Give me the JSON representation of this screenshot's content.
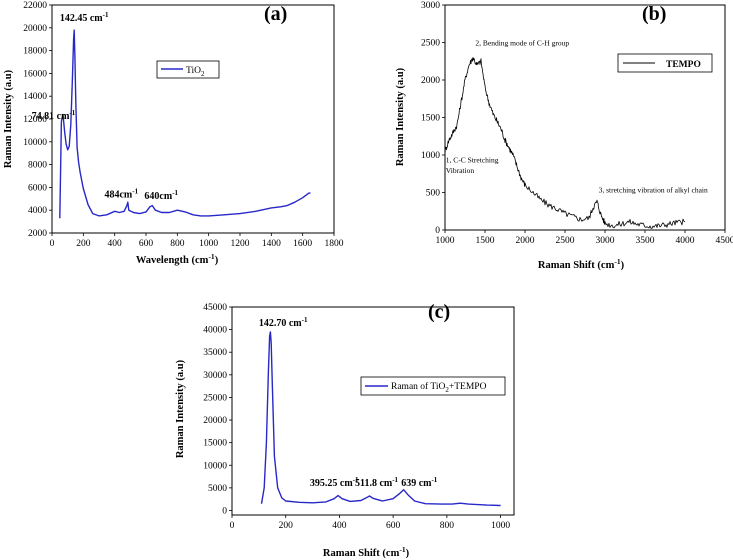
{
  "chart_data": [
    {
      "id": "a",
      "type": "line",
      "panel_label": "(a)",
      "xlabel": "Wavelength (cm",
      "xlabel_sup": "-1",
      "xlabel_tail": ")",
      "ylabel": "Raman Intensity (a.u)",
      "xlim": [
        0,
        1800
      ],
      "ylim": [
        2000,
        22000
      ],
      "xticks": [
        0,
        200,
        400,
        600,
        800,
        1000,
        1200,
        1400,
        1600,
        1800
      ],
      "yticks": [
        2000,
        4000,
        6000,
        8000,
        10000,
        12000,
        14000,
        16000,
        18000,
        20000,
        22000
      ],
      "series": [
        {
          "name": "TiO",
          "name_sub": "2",
          "color": "#2828c8",
          "noise": 0,
          "x": [
            50,
            60,
            70,
            80,
            90,
            100,
            110,
            120,
            130,
            138,
            142,
            146,
            152,
            160,
            170,
            180,
            200,
            230,
            260,
            300,
            350,
            400,
            430,
            460,
            478,
            484,
            490,
            520,
            560,
            600,
            625,
            640,
            660,
            700,
            750,
            800,
            850,
            900,
            950,
            1000,
            1100,
            1200,
            1300,
            1400,
            1460,
            1500,
            1550,
            1600,
            1640,
            1650
          ],
          "y": [
            3300,
            11800,
            12400,
            11000,
            9800,
            9300,
            9600,
            11500,
            15500,
            19000,
            19800,
            17500,
            13500,
            9500,
            8200,
            7300,
            5900,
            4500,
            3700,
            3500,
            3600,
            3900,
            3800,
            3900,
            4400,
            4700,
            4000,
            3800,
            3700,
            3850,
            4300,
            4400,
            4000,
            3800,
            3800,
            4000,
            3850,
            3600,
            3500,
            3500,
            3600,
            3700,
            3900,
            4200,
            4300,
            4400,
            4700,
            5100,
            5500,
            5500
          ]
        }
      ],
      "annotations": [
        {
          "text": "142.45 cm",
          "sup": "-1",
          "x": 50,
          "y": 20600
        },
        {
          "text": "74.81 cm",
          "sup": "-1",
          "x": -130,
          "y": 12000
        },
        {
          "text": "484cm",
          "sup": "-1",
          "x": 335,
          "y": 5100
        },
        {
          "text": "640cm",
          "sup": "-1",
          "x": 590,
          "y": 5000
        }
      ],
      "legend": "top-right"
    },
    {
      "id": "b",
      "type": "line",
      "panel_label": "(b)",
      "xlabel": "Raman Shift (cm",
      "xlabel_sup": "-1",
      "xlabel_tail": ")",
      "ylabel": "Raman Intensity (a.u)",
      "xlim": [
        1000,
        4500
      ],
      "ylim": [
        0,
        3000
      ],
      "xticks": [
        1000,
        1500,
        2000,
        2500,
        3000,
        3500,
        4000,
        4500
      ],
      "yticks": [
        0,
        500,
        1000,
        1500,
        2000,
        2500,
        3000
      ],
      "series": [
        {
          "name": "TEMPO",
          "color": "#000000",
          "noise": 40,
          "x": [
            1000,
            1050,
            1100,
            1150,
            1200,
            1250,
            1300,
            1350,
            1400,
            1450,
            1500,
            1550,
            1600,
            1650,
            1700,
            1750,
            1800,
            1850,
            1900,
            1950,
            2000,
            2100,
            2200,
            2300,
            2400,
            2500,
            2600,
            2700,
            2800,
            2850,
            2900,
            2950,
            3000,
            3100,
            3200,
            3300,
            3400,
            3500,
            3600,
            3700,
            3800,
            3900,
            4000
          ],
          "y": [
            1050,
            1200,
            1300,
            1400,
            1700,
            2000,
            2200,
            2300,
            2200,
            2250,
            1900,
            1700,
            1550,
            1450,
            1350,
            1200,
            1100,
            1000,
            850,
            700,
            600,
            500,
            400,
            330,
            280,
            220,
            180,
            140,
            160,
            300,
            380,
            200,
            90,
            60,
            80,
            110,
            80,
            60,
            50,
            60,
            80,
            100,
            110
          ]
        }
      ],
      "annotations": [
        {
          "text": "2, Bending mode of C-H group",
          "x": 1380,
          "y": 2460
        },
        {
          "text": "1, C-C Stretching",
          "x": 1010,
          "y": 900
        },
        {
          "text": "Vibration",
          "x": 1010,
          "y": 760
        },
        {
          "text": "3, stretching vibration of alkyl chain",
          "x": 2920,
          "y": 500
        }
      ],
      "legend": "top-right"
    },
    {
      "id": "c",
      "type": "line",
      "panel_label": "(c)",
      "xlabel": "Raman Shift (cm",
      "xlabel_sup": "-1",
      "xlabel_tail": ")",
      "ylabel": "Raman Intensity (a.u)",
      "xlim": [
        0,
        1050
      ],
      "ylim": [
        -1000,
        45000
      ],
      "xticks": [
        0,
        200,
        400,
        600,
        800,
        1000
      ],
      "yticks": [
        0,
        5000,
        10000,
        15000,
        20000,
        25000,
        30000,
        35000,
        40000,
        45000
      ],
      "series": [
        {
          "name": "Raman of TiO",
          "name_sub": "2",
          "name_tail": "+TEMPO",
          "color": "#2828c8",
          "noise": 0,
          "x": [
            110,
            120,
            128,
            135,
            140,
            143,
            146,
            150,
            158,
            170,
            185,
            200,
            250,
            300,
            350,
            380,
            395,
            410,
            440,
            480,
            500,
            512,
            525,
            560,
            600,
            625,
            639,
            655,
            680,
            720,
            780,
            820,
            850,
            880,
            950,
            1000
          ],
          "y": [
            1500,
            5000,
            15000,
            30000,
            38500,
            39500,
            37000,
            28000,
            12000,
            5000,
            2800,
            2100,
            1800,
            1700,
            1900,
            2600,
            3300,
            2600,
            2000,
            2200,
            2800,
            3200,
            2700,
            2100,
            2600,
            3800,
            4600,
            3500,
            2100,
            1500,
            1400,
            1400,
            1600,
            1400,
            1200,
            1100
          ]
        }
      ],
      "annotations": [
        {
          "text": "142.70 cm",
          "sup": "-1",
          "x": 100,
          "y": 40800
        },
        {
          "text": "395.25 cm",
          "sup": "-1",
          "x": 290,
          "y": 5400
        },
        {
          "text": "511.8 cm",
          "sup": "-1",
          "x": 458,
          "y": 5400
        },
        {
          "text": "639 cm",
          "sup": "-1",
          "x": 630,
          "y": 5400
        }
      ],
      "legend": "top-right"
    }
  ]
}
